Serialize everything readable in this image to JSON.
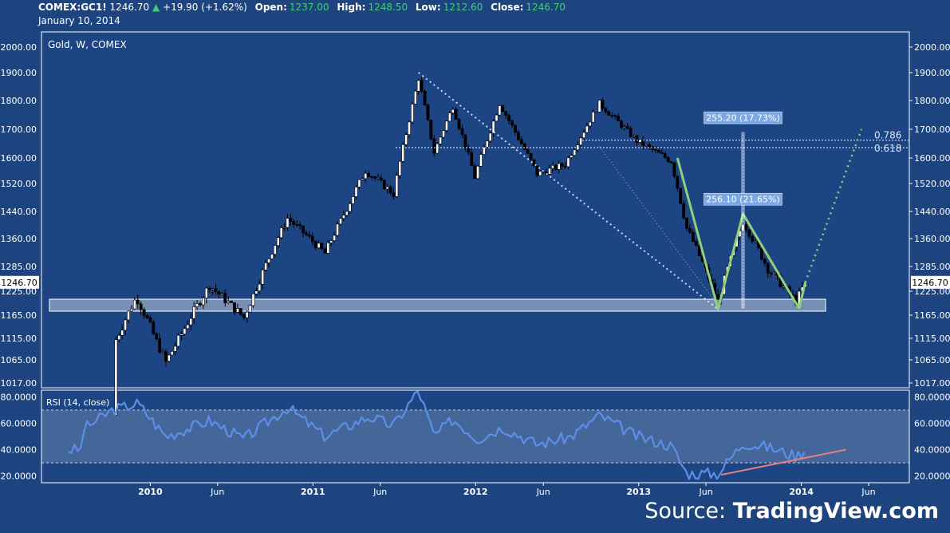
{
  "header": {
    "symbol": "COMEX:GC1!",
    "last": "1246.70",
    "change": "+19.90 (+1.62%)",
    "open_label": "Open:",
    "open": "1237.00",
    "high_label": "High:",
    "high": "1248.50",
    "low_label": "Low:",
    "low": "1212.60",
    "close_label": "Close:",
    "close": "1246.70",
    "date": "January 10, 2014"
  },
  "colors": {
    "background": "#1e4480",
    "up_candle": "#ffffff",
    "down_candle": "#000000",
    "rsi_line": "#5b8fe8",
    "pattern": "#8fd17a",
    "trendline": "#e88080",
    "header_positive": "#3bd16f"
  },
  "chart_data": [
    {
      "type": "candlestick",
      "title": "Gold, W, COMEX",
      "price_scale_labels": [
        "2000.00",
        "1900.00",
        "1800.00",
        "1700.00",
        "1600.00",
        "1520.00",
        "1440.00",
        "1360.00",
        "1285.00",
        "1225.00",
        "1165.00",
        "1115.00",
        "1065.00",
        "1017.00"
      ],
      "x_labels": [
        "2010",
        "Jun",
        "2011",
        "Jun",
        "2012",
        "Jun",
        "2013",
        "Jun",
        "2014",
        "Jun"
      ],
      "last_price_label": "1246.70",
      "path_keypoints": [
        [
          "2009-08-01",
          950
        ],
        [
          "2009-12-01",
          1210
        ],
        [
          "2010-02-05",
          1060
        ],
        [
          "2010-05-14",
          1240
        ],
        [
          "2010-07-30",
          1160
        ],
        [
          "2010-11-05",
          1420
        ],
        [
          "2011-01-28",
          1320
        ],
        [
          "2011-04-29",
          1560
        ],
        [
          "2011-07-01",
          1490
        ],
        [
          "2011-08-26",
          1880
        ],
        [
          "2011-09-30",
          1620
        ],
        [
          "2011-11-11",
          1780
        ],
        [
          "2011-12-30",
          1540
        ],
        [
          "2012-02-24",
          1790
        ],
        [
          "2012-05-18",
          1550
        ],
        [
          "2012-07-20",
          1580
        ],
        [
          "2012-10-05",
          1790
        ],
        [
          "2012-12-28",
          1660
        ],
        [
          "2013-03-15",
          1590
        ],
        [
          "2013-04-19",
          1390
        ],
        [
          "2013-06-28",
          1200
        ],
        [
          "2013-08-23",
          1410
        ],
        [
          "2013-10-18",
          1280
        ],
        [
          "2013-12-20",
          1200
        ],
        [
          "2014-01-10",
          1246.7
        ]
      ],
      "support_zone": [
        1175,
        1205
      ],
      "pattern_points": [
        [
          "2013-03-29",
          1600
        ],
        [
          "2013-06-28",
          1180
        ],
        [
          "2013-08-23",
          1433
        ],
        [
          "2013-12-27",
          1182
        ],
        [
          "2014-01-10",
          1246.7
        ]
      ],
      "projection_target": [
        "2014-05-16",
        1700
      ],
      "measure_annotations": [
        "256.10 (21.65%)",
        "255.20 (17.73%)"
      ],
      "fib_levels": [
        {
          "label": "0.786",
          "price": 1662
        },
        {
          "label": "0.618",
          "price": 1636
        }
      ]
    },
    {
      "type": "line",
      "title": "RSI (14, close)",
      "y_labels": [
        "80.0000",
        "60.0000",
        "40.0000",
        "20.0000"
      ],
      "ylim": [
        15,
        85
      ],
      "band": [
        30,
        70
      ],
      "keypoints": [
        [
          "2009-08-01",
          55
        ],
        [
          "2009-10-09",
          70
        ],
        [
          "2009-12-04",
          75
        ],
        [
          "2010-02-05",
          50
        ],
        [
          "2010-05-14",
          62
        ],
        [
          "2010-07-30",
          48
        ],
        [
          "2010-11-05",
          72
        ],
        [
          "2011-01-28",
          50
        ],
        [
          "2011-05-06",
          65
        ],
        [
          "2011-07-01",
          58
        ],
        [
          "2011-08-26",
          85
        ],
        [
          "2011-09-30",
          50
        ],
        [
          "2011-11-11",
          63
        ],
        [
          "2012-01-06",
          48
        ],
        [
          "2012-03-02",
          57
        ],
        [
          "2012-05-18",
          44
        ],
        [
          "2012-08-03",
          50
        ],
        [
          "2012-10-05",
          66
        ],
        [
          "2012-12-28",
          50
        ],
        [
          "2013-03-15",
          43
        ],
        [
          "2013-04-19",
          22
        ],
        [
          "2013-06-28",
          22
        ],
        [
          "2013-08-23",
          45
        ],
        [
          "2013-10-18",
          42
        ],
        [
          "2013-12-20",
          35
        ],
        [
          "2014-01-10",
          40
        ]
      ],
      "trendline": [
        [
          "2013-07-05",
          21
        ],
        [
          "2014-04-11",
          40
        ]
      ]
    }
  ],
  "watermark": {
    "prefix": "Source: ",
    "brand": "TradingView.com"
  }
}
